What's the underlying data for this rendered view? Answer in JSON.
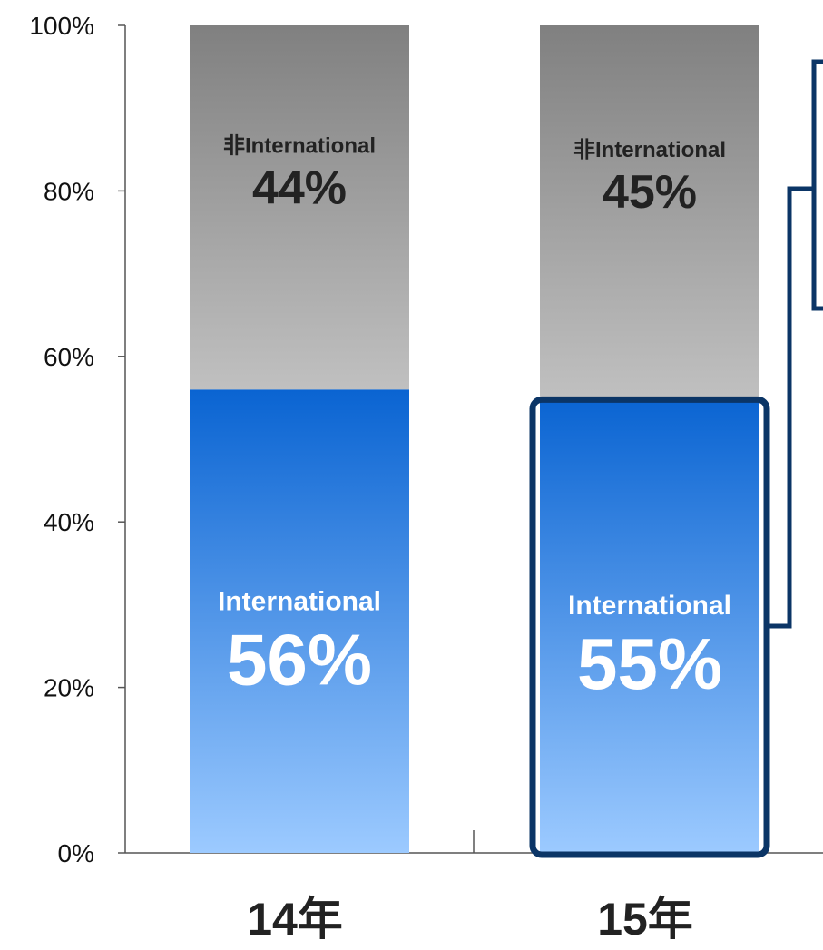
{
  "chart_data": {
    "type": "bar",
    "stacked": true,
    "normalized": true,
    "categories": [
      "14年",
      "15年"
    ],
    "series": [
      {
        "name": "International",
        "values": [
          56,
          55
        ],
        "labels": [
          "56%",
          "55%"
        ]
      },
      {
        "name": "非International",
        "values": [
          44,
          45
        ],
        "labels": [
          "44%",
          "45%"
        ]
      }
    ],
    "yticks": [
      "0%",
      "20%",
      "40%",
      "60%",
      "80%",
      "100%"
    ],
    "ylim": [
      0,
      100
    ],
    "grid": false,
    "legend": "none",
    "highlight": {
      "category_index": 1,
      "series_index": 0
    },
    "colors": {
      "international_top": "#0a64d2",
      "international_bottom": "#9ccaff",
      "non_international_top": "#808080",
      "non_international_bottom": "#c0c0c0",
      "highlight": "#0b3566"
    }
  }
}
